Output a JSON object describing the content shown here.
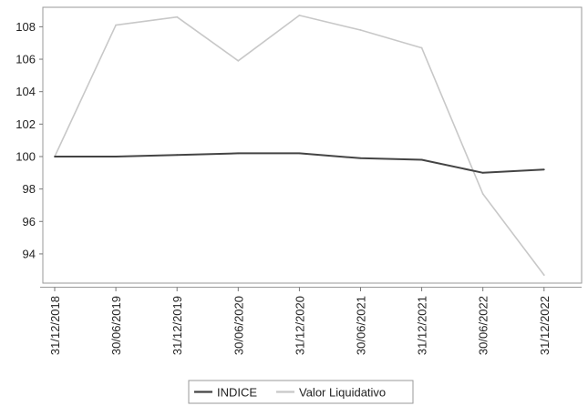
{
  "chart_data": {
    "type": "line",
    "title": "",
    "xlabel": "",
    "ylabel": "",
    "categories": [
      "31/12/2018",
      "30/06/2019",
      "31/12/2019",
      "30/06/2020",
      "31/12/2020",
      "30/06/2021",
      "31/12/2021",
      "30/06/2022",
      "31/12/2022"
    ],
    "ylim": [
      92.2,
      109.2
    ],
    "yticks": [
      94,
      96,
      98,
      100,
      102,
      104,
      106,
      108
    ],
    "grid": false,
    "legend_position": "bottom",
    "series": [
      {
        "name": "INDICE",
        "color": "#444444",
        "points": [
          {
            "x": "31/12/2018",
            "y": 100.0
          },
          {
            "x": "30/06/2019",
            "y": 100.0
          },
          {
            "x": "31/12/2019",
            "y": 100.1
          },
          {
            "x": "30/06/2020",
            "y": 100.2
          },
          {
            "x": "31/12/2020",
            "y": 100.2
          },
          {
            "x": "30/06/2021",
            "y": 99.9
          },
          {
            "x": "31/12/2021",
            "y": 99.8
          },
          {
            "x": "30/06/2022",
            "y": 99.0
          },
          {
            "x": "31/12/2022",
            "y": 99.2
          }
        ]
      },
      {
        "name": "Valor Liquidativo",
        "color": "#c8c8c8",
        "points": [
          {
            "x": "31/12/2018",
            "y": 100.0
          },
          {
            "x": "30/06/2019",
            "y": 108.1
          },
          {
            "x": "31/12/2019",
            "y": 108.6
          },
          {
            "x": "30/06/2020",
            "y": 105.9
          },
          {
            "x": "31/12/2020",
            "y": 108.7
          },
          {
            "x": "30/06/2021",
            "y": 107.8
          },
          {
            "x": "31/12/2021",
            "y": 106.7
          },
          {
            "x": "30/06/2022",
            "y": 97.7
          },
          {
            "x": "31/12/2022",
            "y": 92.7
          }
        ]
      }
    ]
  }
}
